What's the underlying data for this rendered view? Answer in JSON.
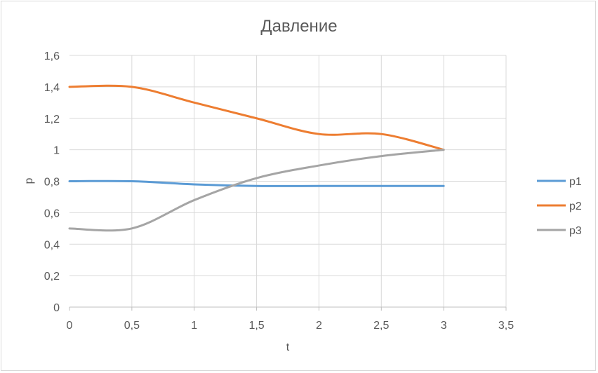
{
  "chart_data": {
    "type": "line",
    "title": "Давление",
    "xlabel": "t",
    "ylabel": "p",
    "xlim": [
      0,
      3.5
    ],
    "ylim": [
      0,
      1.6
    ],
    "xticks": [
      "0",
      "0,5",
      "1",
      "1,5",
      "2",
      "2,5",
      "3",
      "3,5"
    ],
    "yticks": [
      "0",
      "0,2",
      "0,4",
      "0,6",
      "0,8",
      "1",
      "1,2",
      "1,4",
      "1,6"
    ],
    "grid": true,
    "smooth": true,
    "legend_position": "right",
    "series": [
      {
        "name": "p1",
        "color": "#5b9bd5",
        "x": [
          0,
          0.5,
          1,
          1.5,
          2,
          2.5,
          3
        ],
        "y": [
          0.8,
          0.8,
          0.78,
          0.77,
          0.77,
          0.77,
          0.77
        ]
      },
      {
        "name": "p2",
        "color": "#ed7d31",
        "x": [
          0,
          0.5,
          1,
          1.5,
          2,
          2.5,
          3
        ],
        "y": [
          1.4,
          1.4,
          1.3,
          1.2,
          1.1,
          1.1,
          1.0
        ]
      },
      {
        "name": "p3",
        "color": "#a5a5a5",
        "x": [
          0,
          0.5,
          1,
          1.5,
          2,
          2.5,
          3
        ],
        "y": [
          0.5,
          0.5,
          0.68,
          0.82,
          0.9,
          0.96,
          1.0
        ]
      }
    ]
  }
}
